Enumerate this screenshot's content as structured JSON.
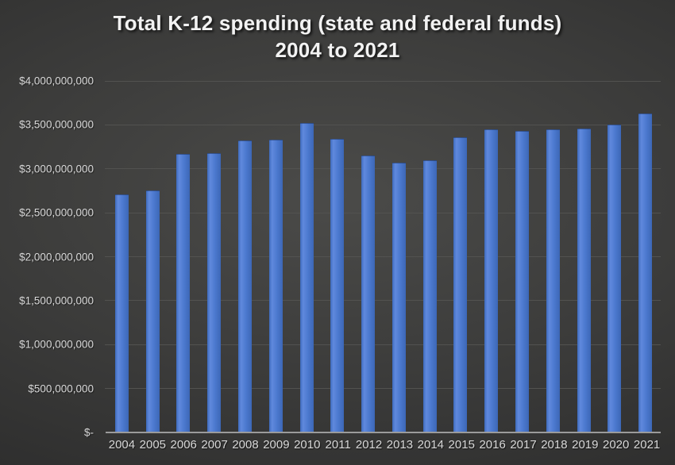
{
  "chart_data": {
    "type": "bar",
    "title": "Total K-12 spending (state and federal funds)",
    "subtitle": "2004 to 2021",
    "xlabel": "",
    "ylabel": "",
    "categories": [
      "2004",
      "2005",
      "2006",
      "2007",
      "2008",
      "2009",
      "2010",
      "2011",
      "2012",
      "2013",
      "2014",
      "2015",
      "2016",
      "2017",
      "2018",
      "2019",
      "2020",
      "2021"
    ],
    "values": [
      2710000000,
      2750000000,
      3170000000,
      3180000000,
      3320000000,
      3330000000,
      3520000000,
      3340000000,
      3150000000,
      3070000000,
      3100000000,
      3360000000,
      3450000000,
      3430000000,
      3450000000,
      3460000000,
      3500000000,
      3630000000
    ],
    "ylim": [
      0,
      4000000000
    ],
    "ytick_step": 500000000,
    "ytick_labels_top_to_bottom": [
      "$4,000,000,000",
      "$3,500,000,000",
      "$3,000,000,000",
      "$2,500,000,000",
      "$2,000,000,000",
      "$1,500,000,000",
      "$1,000,000,000",
      "$500,000,000",
      "$-"
    ],
    "grid": true,
    "legend": "none",
    "colors": {
      "bar_blue": "#4d79d0",
      "title_text": "#f2f2f2",
      "axis_text": "#d9d9d9",
      "grid_line": "#525250",
      "axis_line": "#9b9b9b",
      "background_center": "#4b4b49",
      "background_edge": "#262626"
    }
  }
}
